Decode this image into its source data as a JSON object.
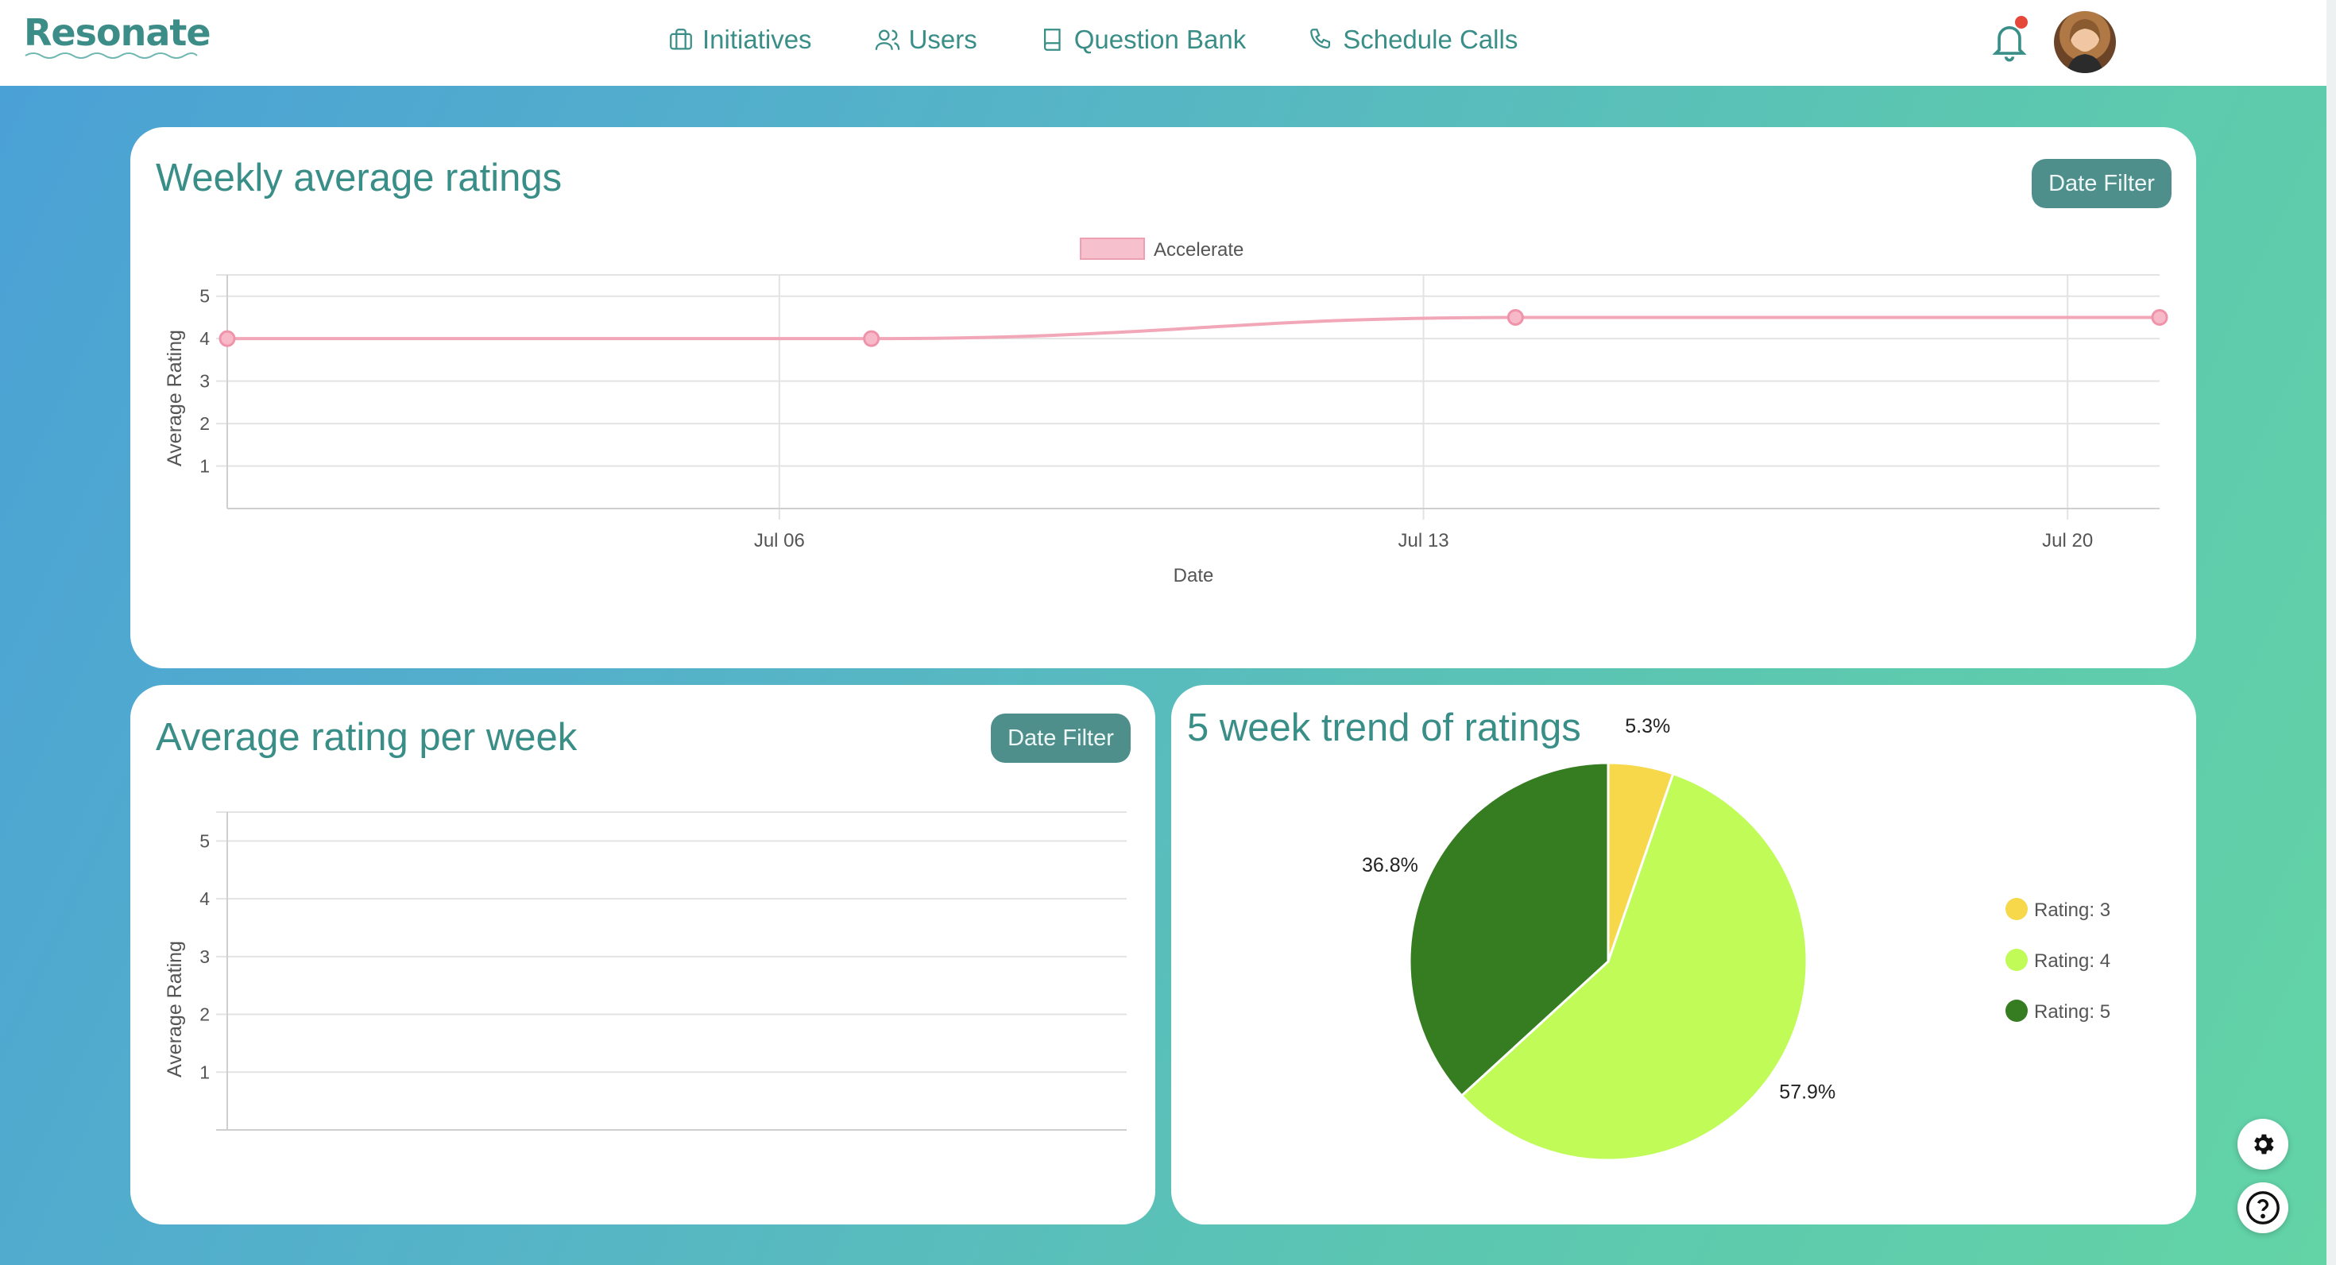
{
  "header": {
    "logo": "Resonate",
    "nav": [
      {
        "label": "Initiatives",
        "icon": "briefcase-icon"
      },
      {
        "label": "Users",
        "icon": "users-icon"
      },
      {
        "label": "Question Bank",
        "icon": "book-icon"
      },
      {
        "label": "Schedule Calls",
        "icon": "phone-icon"
      }
    ],
    "notification_icon": "bell-icon",
    "notification_badge_color": "#e5483a"
  },
  "colors": {
    "brand": "#3a8e88",
    "button": "#4e8f8c",
    "line_series": "#f2a7b8",
    "pie": [
      "#f7d84a",
      "#c0fb58",
      "#367d22"
    ]
  },
  "cards": {
    "weekly": {
      "title": "Weekly average ratings",
      "filter_label": "Date Filter"
    },
    "per_week": {
      "title": "Average rating per week",
      "filter_label": "Date Filter"
    },
    "trend": {
      "title": "5 week trend of ratings"
    }
  },
  "chart_data": [
    {
      "type": "line",
      "title": "Weekly average ratings",
      "xlabel": "Date",
      "ylabel": "Average Rating",
      "xticks": [
        "Jul 06",
        "Jul 13",
        "Jul 20"
      ],
      "xlim": [
        "2023-06-30",
        "2023-07-21"
      ],
      "ylim": [
        0,
        5.5
      ],
      "yticks": [
        1,
        2,
        3,
        4,
        5
      ],
      "legend": "top-center",
      "series": [
        {
          "name": "Accelerate",
          "x": [
            "2023-06-30",
            "2023-07-07",
            "2023-07-14",
            "2023-07-21"
          ],
          "values": [
            4,
            4,
            4.5,
            4.5
          ]
        }
      ]
    },
    {
      "type": "bar",
      "title": "Average rating per week",
      "ylabel": "Average Rating",
      "ylim": [
        0,
        5.5
      ],
      "yticks": [
        1,
        2,
        3,
        4,
        5
      ],
      "categories": [],
      "values": []
    },
    {
      "type": "pie",
      "title": "5 week trend of ratings",
      "legend": "right",
      "categories": [
        "Rating: 3",
        "Rating: 4",
        "Rating: 5"
      ],
      "values": [
        5.3,
        57.9,
        36.8
      ],
      "labels": [
        "5.3%",
        "57.9%",
        "36.8%"
      ]
    }
  ]
}
